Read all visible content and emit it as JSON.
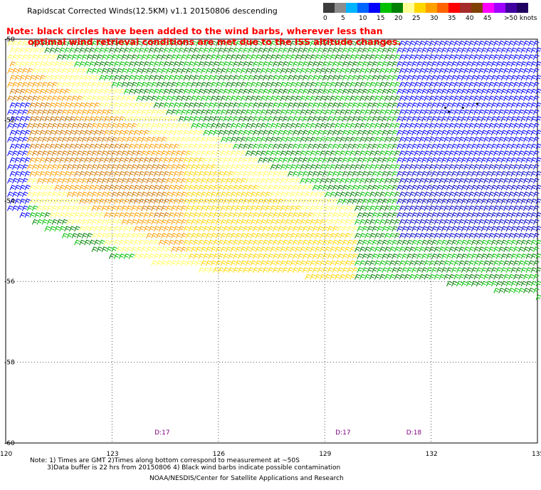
{
  "title": "Rapidscat Corrected Winds(12.5KM) v1.1 20150806 descending",
  "note": {
    "line1": "Note: black circles have been added to the wind barbs, wherever less than",
    "line2": "optimal wind retrieval conditions are met due to the ISS altitude changes."
  },
  "color_scale": {
    "colors": [
      "#3c3c3c",
      "#8c8c8c",
      "#00b4ff",
      "#0064ff",
      "#0000ff",
      "#00c000",
      "#008000",
      "#ffff96",
      "#ffd700",
      "#ffa000",
      "#ff6400",
      "#ff0000",
      "#a52a2a",
      "#804000",
      "#ff00ff",
      "#a000ff",
      "#4000a0",
      "#200060"
    ],
    "labels": [
      "0",
      "5",
      "10",
      "15",
      "20",
      "25",
      "30",
      "35",
      "40",
      "45",
      ">50 knots"
    ]
  },
  "lat_labels": [
    "-50",
    "-52",
    "-54",
    "-56",
    "-58",
    "-60"
  ],
  "lon_labels": [
    "120",
    "123",
    "126",
    "129",
    "132",
    "135"
  ],
  "time_labels": [
    "D:17",
    "D:17",
    "D:18"
  ],
  "footer": {
    "line1": "Note: 1) Times are GMT 2)Times along bottom correspond to measurement at ~50S",
    "line2": "3)Data buffer is 22 hrs from 20150806 4) Black wind barbs indicate possible contamination",
    "line3": "NOAA/NESDIS/Center for Satellite Applications and Research"
  },
  "wind_field": {
    "lat_range": [
      -60,
      -50
    ],
    "lon_range": [
      120,
      135
    ],
    "speed_colors": [
      "#0000c8",
      "#0000ff",
      "#00c000",
      "#008000",
      "#ffff64",
      "#ffd700",
      "#ffa000",
      "#d27800"
    ]
  }
}
